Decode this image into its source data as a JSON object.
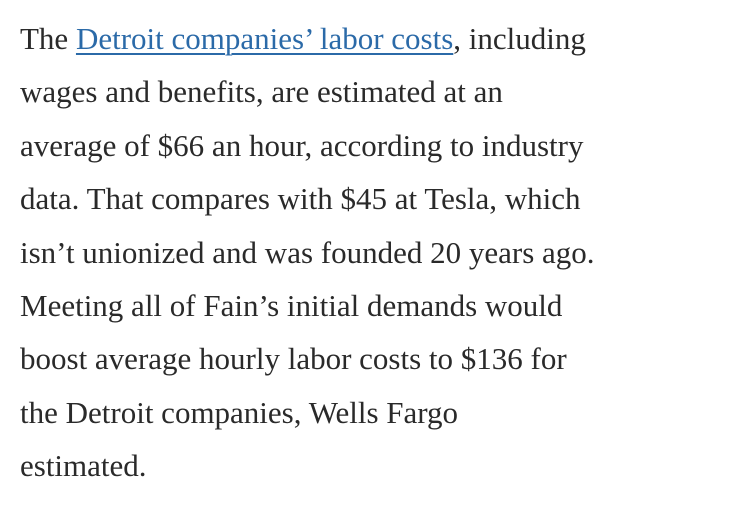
{
  "paragraph": {
    "lines": [
      {
        "before": "The",
        "link": "Detroit companies’ labor costs",
        "after": ", including"
      },
      "wages and benefits, are estimated at an",
      "average of $66 an hour, according to industry",
      "data. That compares with $45 at Tesla, which",
      "isn’t unionized and was founded 20 years ago.",
      "Meeting all of Fain’s initial demands would",
      "boost average hourly labor costs to $136 for",
      "the Detroit companies, Wells Fargo",
      "estimated."
    ]
  }
}
